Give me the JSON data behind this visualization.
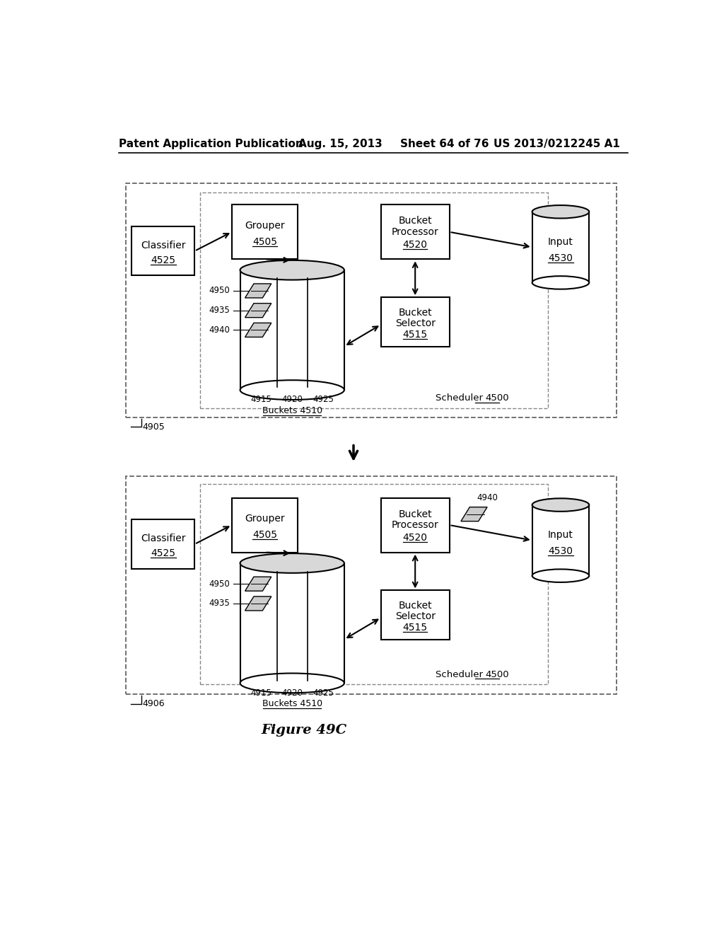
{
  "bg_color": "#ffffff",
  "header_text": "Patent Application Publication",
  "header_date": "Aug. 15, 2013",
  "header_sheet": "Sheet 64 of 76",
  "header_patent": "US 2013/0212245 A1",
  "figure_label": "Figure 49C"
}
